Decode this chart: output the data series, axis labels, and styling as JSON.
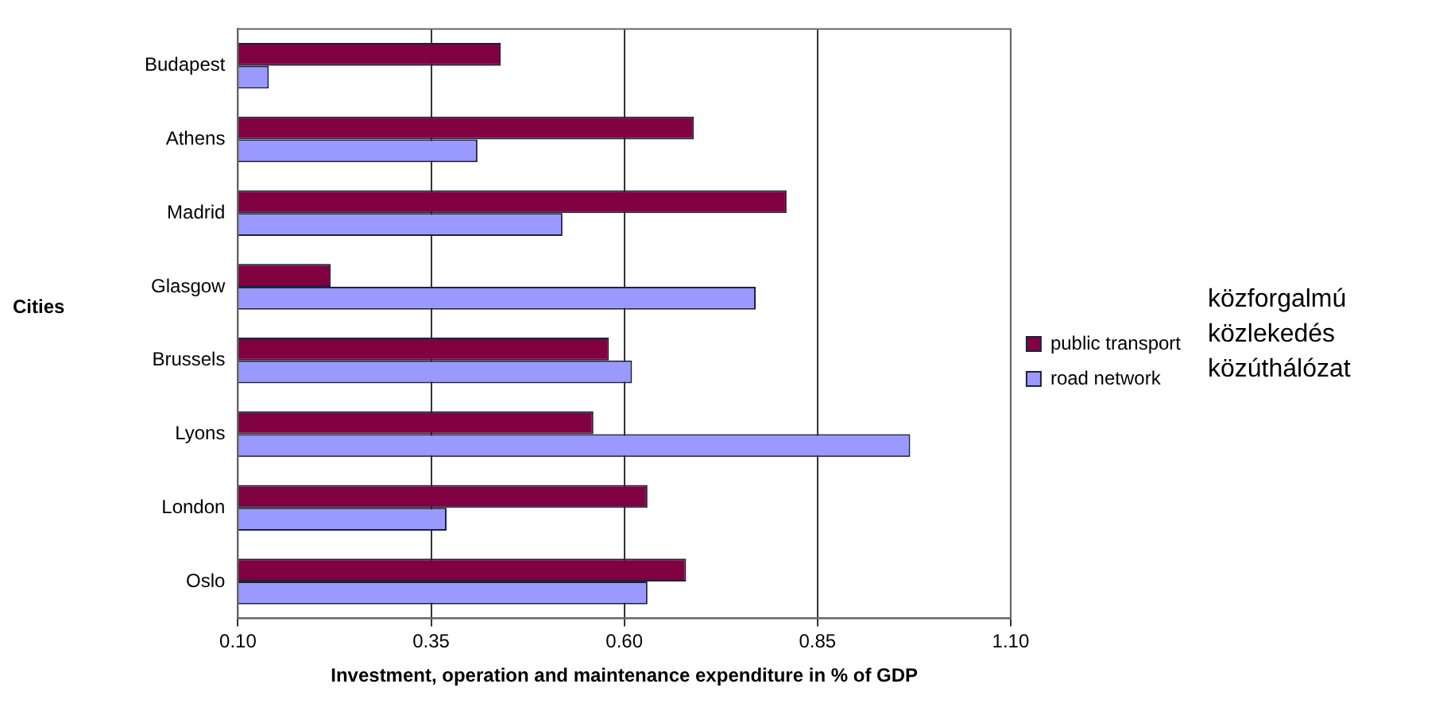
{
  "chart_data": {
    "type": "bar",
    "orientation": "horizontal",
    "xlabel": "Investment, operation and maintenance expenditure in % of GDP",
    "ylabel": "Cities",
    "categories": [
      "Budapest",
      "Athens",
      "Madrid",
      "Glasgow",
      "Brussels",
      "Lyons",
      "London",
      "Oslo"
    ],
    "series": [
      {
        "name": "public transport",
        "color": "#800040",
        "values": [
          0.44,
          0.69,
          0.81,
          0.22,
          0.58,
          0.56,
          0.63,
          0.68
        ]
      },
      {
        "name": "road network",
        "color": "#9999ff",
        "values": [
          0.14,
          0.41,
          0.52,
          0.77,
          0.61,
          0.97,
          0.37,
          0.63
        ]
      }
    ],
    "xlim": [
      0.1,
      1.1
    ],
    "xticks": [
      {
        "value": 0.1,
        "label": "0.10"
      },
      {
        "value": 0.35,
        "label": "0.35"
      },
      {
        "value": 0.6,
        "label": "0.60"
      },
      {
        "value": 0.85,
        "label": "0.85"
      },
      {
        "value": 1.1,
        "label": "1.10"
      }
    ],
    "grid": "x",
    "legend": "right",
    "annotations": [
      "közforgalmú közlekedés",
      "közúthálózat"
    ]
  }
}
